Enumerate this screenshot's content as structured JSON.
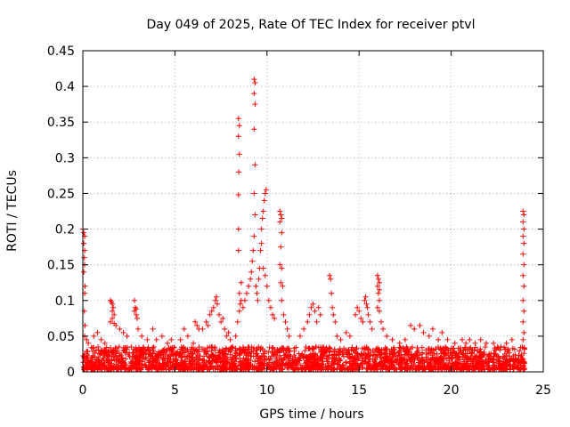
{
  "chart_data": {
    "type": "scatter",
    "title": "Day 049 of 2025, Rate Of TEC Index for receiver ptvl",
    "xlabel": "GPS time / hours",
    "ylabel": "ROTI / TECUs",
    "xlim": [
      0,
      25
    ],
    "ylim": [
      0,
      0.45
    ],
    "x_ticks": [
      0,
      5,
      10,
      15,
      20,
      25
    ],
    "y_ticks": [
      0,
      0.05,
      0.1,
      0.15,
      0.2,
      0.25,
      0.3,
      0.35,
      0.4,
      0.45
    ],
    "x_tick_labels": [
      "0",
      "5",
      "10",
      "15",
      "20",
      "25"
    ],
    "y_tick_labels": [
      "0",
      "0.05",
      "0.1",
      "0.15",
      "0.2",
      "0.25",
      "0.3",
      "0.35",
      "0.4",
      "0.45"
    ],
    "grid": true,
    "marker": "+",
    "color": "#ff0000",
    "series": [
      {
        "name": "ROTI",
        "baseline_noise": {
          "x_range": [
            0,
            24
          ],
          "typical_max": 0.035,
          "typical_min": 0.003,
          "approx_points": 2400
        },
        "points": [
          [
            0.0,
            0.2
          ],
          [
            0.05,
            0.195
          ],
          [
            0.1,
            0.19
          ],
          [
            0.05,
            0.18
          ],
          [
            0.1,
            0.17
          ],
          [
            0.08,
            0.16
          ],
          [
            0.1,
            0.15
          ],
          [
            0.05,
            0.14
          ],
          [
            0.12,
            0.12
          ],
          [
            0.1,
            0.11
          ],
          [
            0.08,
            0.085
          ],
          [
            0.12,
            0.065
          ],
          [
            0.1,
            0.05
          ],
          [
            0.2,
            0.045
          ],
          [
            0.3,
            0.04
          ],
          [
            0.6,
            0.05
          ],
          [
            0.8,
            0.055
          ],
          [
            1.0,
            0.045
          ],
          [
            1.2,
            0.04
          ],
          [
            1.5,
            0.1
          ],
          [
            1.55,
            0.098
          ],
          [
            1.6,
            0.095
          ],
          [
            1.65,
            0.09
          ],
          [
            1.6,
            0.085
          ],
          [
            1.7,
            0.08
          ],
          [
            1.6,
            0.075
          ],
          [
            1.5,
            0.07
          ],
          [
            1.7,
            0.068
          ],
          [
            1.8,
            0.065
          ],
          [
            2.0,
            0.06
          ],
          [
            2.2,
            0.055
          ],
          [
            2.4,
            0.05
          ],
          [
            2.8,
            0.1
          ],
          [
            2.85,
            0.09
          ],
          [
            2.9,
            0.088
          ],
          [
            2.8,
            0.085
          ],
          [
            2.9,
            0.08
          ],
          [
            2.95,
            0.075
          ],
          [
            3.0,
            0.06
          ],
          [
            3.2,
            0.05
          ],
          [
            3.5,
            0.045
          ],
          [
            3.8,
            0.06
          ],
          [
            4.0,
            0.045
          ],
          [
            4.3,
            0.05
          ],
          [
            4.6,
            0.04
          ],
          [
            4.8,
            0.045
          ],
          [
            5.3,
            0.045
          ],
          [
            5.5,
            0.06
          ],
          [
            5.7,
            0.05
          ],
          [
            6.0,
            0.04
          ],
          [
            6.1,
            0.07
          ],
          [
            6.2,
            0.065
          ],
          [
            6.3,
            0.06
          ],
          [
            6.5,
            0.06
          ],
          [
            6.7,
            0.07
          ],
          [
            6.8,
            0.065
          ],
          [
            6.9,
            0.08
          ],
          [
            7.0,
            0.085
          ],
          [
            7.1,
            0.09
          ],
          [
            7.2,
            0.1
          ],
          [
            7.25,
            0.105
          ],
          [
            7.3,
            0.095
          ],
          [
            7.4,
            0.08
          ],
          [
            7.5,
            0.07
          ],
          [
            7.6,
            0.075
          ],
          [
            7.7,
            0.06
          ],
          [
            7.8,
            0.05
          ],
          [
            7.9,
            0.055
          ],
          [
            8.0,
            0.045
          ],
          [
            8.3,
            0.05
          ],
          [
            8.4,
            0.07
          ],
          [
            8.5,
            0.085
          ],
          [
            8.55,
            0.095
          ],
          [
            8.6,
            0.1
          ],
          [
            8.5,
            0.11
          ],
          [
            8.6,
            0.125
          ],
          [
            8.45,
            0.17
          ],
          [
            8.45,
            0.2
          ],
          [
            8.45,
            0.248
          ],
          [
            8.47,
            0.28
          ],
          [
            8.5,
            0.305
          ],
          [
            8.45,
            0.33
          ],
          [
            8.5,
            0.345
          ],
          [
            8.45,
            0.355
          ],
          [
            8.7,
            0.09
          ],
          [
            8.8,
            0.1
          ],
          [
            8.9,
            0.11
          ],
          [
            9.0,
            0.12
          ],
          [
            9.1,
            0.13
          ],
          [
            9.15,
            0.14
          ],
          [
            9.2,
            0.155
          ],
          [
            9.25,
            0.17
          ],
          [
            9.3,
            0.19
          ],
          [
            9.35,
            0.22
          ],
          [
            9.3,
            0.25
          ],
          [
            9.35,
            0.29
          ],
          [
            9.3,
            0.34
          ],
          [
            9.35,
            0.375
          ],
          [
            9.3,
            0.39
          ],
          [
            9.35,
            0.405
          ],
          [
            9.3,
            0.41
          ],
          [
            9.4,
            0.12
          ],
          [
            9.45,
            0.11
          ],
          [
            9.5,
            0.1
          ],
          [
            9.55,
            0.13
          ],
          [
            9.6,
            0.145
          ],
          [
            9.65,
            0.17
          ],
          [
            9.7,
            0.18
          ],
          [
            9.7,
            0.2
          ],
          [
            9.75,
            0.215
          ],
          [
            9.8,
            0.225
          ],
          [
            9.85,
            0.24
          ],
          [
            9.9,
            0.25
          ],
          [
            9.95,
            0.255
          ],
          [
            9.8,
            0.145
          ],
          [
            9.9,
            0.135
          ],
          [
            10.0,
            0.12
          ],
          [
            10.1,
            0.1
          ],
          [
            10.2,
            0.09
          ],
          [
            10.3,
            0.08
          ],
          [
            10.4,
            0.075
          ],
          [
            10.7,
            0.225
          ],
          [
            10.75,
            0.22
          ],
          [
            10.8,
            0.215
          ],
          [
            10.7,
            0.21
          ],
          [
            10.8,
            0.195
          ],
          [
            10.75,
            0.175
          ],
          [
            10.7,
            0.15
          ],
          [
            10.8,
            0.145
          ],
          [
            10.75,
            0.125
          ],
          [
            10.85,
            0.12
          ],
          [
            10.8,
            0.1
          ],
          [
            10.9,
            0.08
          ],
          [
            11.0,
            0.07
          ],
          [
            11.1,
            0.06
          ],
          [
            11.2,
            0.05
          ],
          [
            11.8,
            0.05
          ],
          [
            12.0,
            0.06
          ],
          [
            12.2,
            0.07
          ],
          [
            12.3,
            0.08
          ],
          [
            12.4,
            0.09
          ],
          [
            12.5,
            0.095
          ],
          [
            12.6,
            0.085
          ],
          [
            12.8,
            0.09
          ],
          [
            12.9,
            0.08
          ],
          [
            12.7,
            0.07
          ],
          [
            13.4,
            0.135
          ],
          [
            13.45,
            0.13
          ],
          [
            13.5,
            0.11
          ],
          [
            13.55,
            0.09
          ],
          [
            13.6,
            0.08
          ],
          [
            13.7,
            0.07
          ],
          [
            13.8,
            0.05
          ],
          [
            14.0,
            0.045
          ],
          [
            14.3,
            0.055
          ],
          [
            14.5,
            0.05
          ],
          [
            14.8,
            0.08
          ],
          [
            14.9,
            0.09
          ],
          [
            15.0,
            0.085
          ],
          [
            15.1,
            0.075
          ],
          [
            15.2,
            0.07
          ],
          [
            15.3,
            0.1
          ],
          [
            15.35,
            0.105
          ],
          [
            15.4,
            0.095
          ],
          [
            15.45,
            0.09
          ],
          [
            15.5,
            0.08
          ],
          [
            15.6,
            0.07
          ],
          [
            15.7,
            0.06
          ],
          [
            16.0,
            0.135
          ],
          [
            16.05,
            0.13
          ],
          [
            16.1,
            0.125
          ],
          [
            16.0,
            0.12
          ],
          [
            16.1,
            0.115
          ],
          [
            16.05,
            0.11
          ],
          [
            16.1,
            0.1
          ],
          [
            16.0,
            0.09
          ],
          [
            16.1,
            0.085
          ],
          [
            16.2,
            0.07
          ],
          [
            16.3,
            0.06
          ],
          [
            16.5,
            0.05
          ],
          [
            16.8,
            0.045
          ],
          [
            17.2,
            0.04
          ],
          [
            17.5,
            0.045
          ],
          [
            17.8,
            0.065
          ],
          [
            18.0,
            0.06
          ],
          [
            18.3,
            0.065
          ],
          [
            18.5,
            0.055
          ],
          [
            18.8,
            0.05
          ],
          [
            19.0,
            0.06
          ],
          [
            19.3,
            0.045
          ],
          [
            19.5,
            0.055
          ],
          [
            19.8,
            0.045
          ],
          [
            20.2,
            0.04
          ],
          [
            20.6,
            0.045
          ],
          [
            20.8,
            0.04
          ],
          [
            21.0,
            0.045
          ],
          [
            21.3,
            0.04
          ],
          [
            21.6,
            0.045
          ],
          [
            21.9,
            0.04
          ],
          [
            22.3,
            0.04
          ],
          [
            22.7,
            0.035
          ],
          [
            23.0,
            0.04
          ],
          [
            23.3,
            0.045
          ],
          [
            23.9,
            0.225
          ],
          [
            23.95,
            0.22
          ],
          [
            23.9,
            0.21
          ],
          [
            23.95,
            0.2
          ],
          [
            23.9,
            0.19
          ],
          [
            23.95,
            0.18
          ],
          [
            23.9,
            0.165
          ],
          [
            23.95,
            0.15
          ],
          [
            23.9,
            0.135
          ],
          [
            23.95,
            0.12
          ],
          [
            23.9,
            0.1
          ],
          [
            23.95,
            0.085
          ],
          [
            23.9,
            0.07
          ],
          [
            23.95,
            0.055
          ],
          [
            23.9,
            0.045
          ]
        ]
      }
    ]
  }
}
